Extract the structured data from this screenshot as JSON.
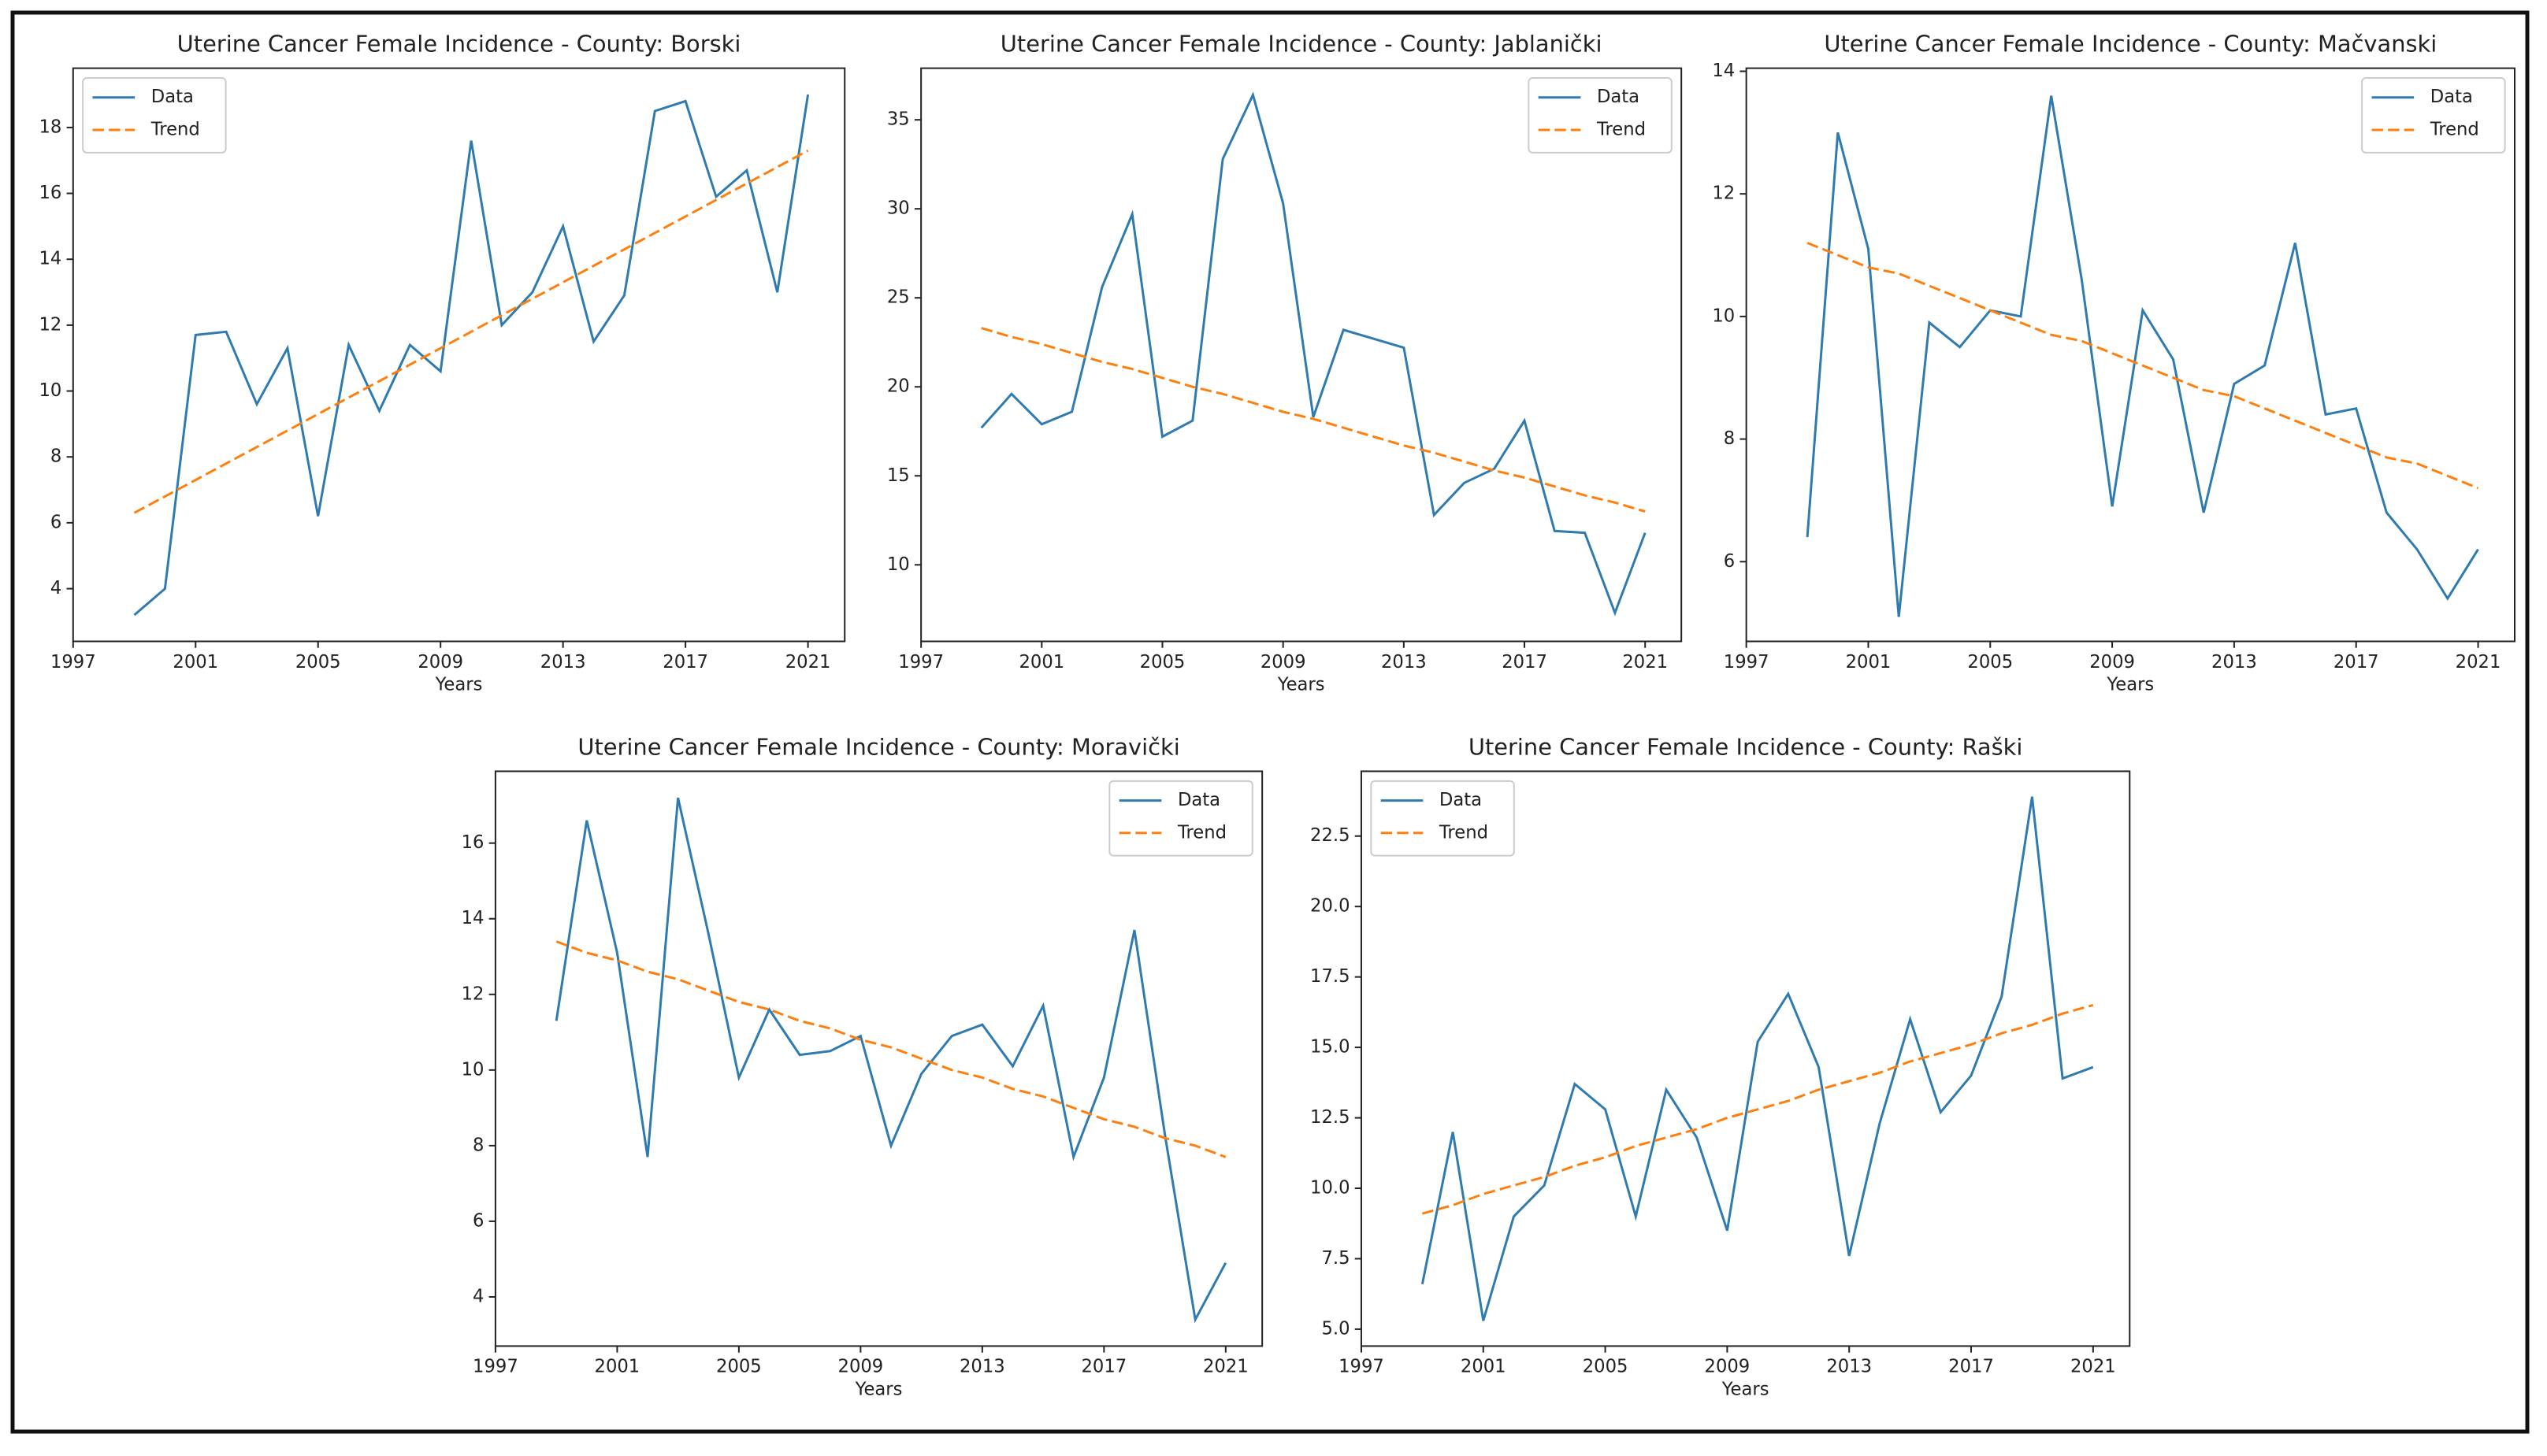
{
  "chart_data": [
    {
      "type": "line",
      "title": "Uterine Cancer Female Incidence - County: Borski",
      "xlabel": "Years",
      "legend": "upper left",
      "x": [
        1999,
        2000,
        2001,
        2002,
        2003,
        2004,
        2005,
        2006,
        2007,
        2008,
        2009,
        2010,
        2011,
        2012,
        2013,
        2014,
        2015,
        2016,
        2017,
        2018,
        2019,
        2020,
        2021
      ],
      "series": [
        {
          "name": "Data",
          "color": "#2f7bb0",
          "style": "solid",
          "values": [
            3.2,
            4.0,
            11.7,
            11.8,
            9.6,
            11.3,
            6.2,
            11.4,
            9.4,
            11.4,
            10.6,
            17.6,
            12.0,
            13.0,
            15.0,
            11.5,
            12.9,
            18.5,
            18.8,
            15.9,
            16.7,
            13.0,
            19.0
          ]
        },
        {
          "name": "Trend",
          "color": "#ff7f0e",
          "style": "dashed",
          "values": [
            6.3,
            6.8,
            7.3,
            7.8,
            8.3,
            8.8,
            9.3,
            9.8,
            10.3,
            10.8,
            11.3,
            11.8,
            12.3,
            12.8,
            13.3,
            13.8,
            14.3,
            14.8,
            15.3,
            15.8,
            16.3,
            16.8,
            17.3
          ]
        }
      ],
      "xlim": [
        1997,
        2022.2
      ],
      "xticks": [
        1997,
        2001,
        2005,
        2009,
        2013,
        2017,
        2021
      ],
      "ylim": [
        2.4,
        19.8
      ],
      "yticks": [
        4,
        6,
        8,
        10,
        12,
        14,
        16,
        18
      ]
    },
    {
      "type": "line",
      "title": "Uterine Cancer Female Incidence - County: Jablanički",
      "xlabel": "Years",
      "legend": "upper right",
      "x": [
        1999,
        2000,
        2001,
        2002,
        2003,
        2004,
        2005,
        2006,
        2007,
        2008,
        2009,
        2010,
        2011,
        2012,
        2013,
        2014,
        2015,
        2016,
        2017,
        2018,
        2019,
        2020,
        2021
      ],
      "series": [
        {
          "name": "Data",
          "color": "#2f7bb0",
          "style": "solid",
          "values": [
            17.7,
            19.6,
            17.9,
            18.6,
            25.6,
            29.7,
            17.2,
            18.1,
            32.8,
            36.4,
            30.3,
            18.3,
            23.2,
            22.7,
            22.2,
            12.8,
            14.6,
            15.4,
            18.1,
            11.9,
            11.8,
            7.3,
            11.8
          ]
        },
        {
          "name": "Trend",
          "color": "#ff7f0e",
          "style": "dashed",
          "values": [
            23.3,
            22.8,
            22.4,
            21.9,
            21.4,
            21.0,
            20.5,
            20.0,
            19.6,
            19.1,
            18.6,
            18.2,
            17.7,
            17.2,
            16.7,
            16.3,
            15.8,
            15.3,
            14.9,
            14.4,
            13.9,
            13.5,
            13.0
          ]
        }
      ],
      "xlim": [
        1997,
        2022.2
      ],
      "xticks": [
        1997,
        2001,
        2005,
        2009,
        2013,
        2017,
        2021
      ],
      "ylim": [
        5.7,
        37.9
      ],
      "yticks": [
        10,
        15,
        20,
        25,
        30,
        35
      ]
    },
    {
      "type": "line",
      "title": "Uterine Cancer Female Incidence - County: Mačvanski",
      "xlabel": "Years",
      "legend": "upper right",
      "x": [
        1999,
        2000,
        2001,
        2002,
        2003,
        2004,
        2005,
        2006,
        2007,
        2008,
        2009,
        2010,
        2011,
        2012,
        2013,
        2014,
        2015,
        2016,
        2017,
        2018,
        2019,
        2020,
        2021
      ],
      "series": [
        {
          "name": "Data",
          "color": "#2f7bb0",
          "style": "solid",
          "values": [
            6.4,
            13.0,
            11.1,
            5.1,
            9.9,
            9.5,
            10.1,
            10.0,
            13.6,
            10.6,
            6.9,
            10.1,
            9.3,
            6.8,
            8.9,
            9.2,
            11.2,
            8.4,
            8.5,
            6.8,
            6.2,
            5.4,
            6.2
          ]
        },
        {
          "name": "Trend",
          "color": "#ff7f0e",
          "style": "dashed",
          "values": [
            11.2,
            11.0,
            10.8,
            10.7,
            10.5,
            10.3,
            10.1,
            9.9,
            9.7,
            9.6,
            9.4,
            9.2,
            9.0,
            8.8,
            8.7,
            8.5,
            8.3,
            8.1,
            7.9,
            7.7,
            7.6,
            7.4,
            7.2
          ]
        }
      ],
      "xlim": [
        1997,
        2022.2
      ],
      "xticks": [
        1997,
        2001,
        2005,
        2009,
        2013,
        2017,
        2021
      ],
      "ylim": [
        4.7,
        14.05
      ],
      "yticks": [
        6,
        8,
        10,
        12,
        14
      ]
    },
    {
      "type": "line",
      "title": "Uterine Cancer Female Incidence - County: Moravički",
      "xlabel": "Years",
      "legend": "upper right",
      "x": [
        1999,
        2000,
        2001,
        2002,
        2003,
        2004,
        2005,
        2006,
        2007,
        2008,
        2009,
        2010,
        2011,
        2012,
        2013,
        2014,
        2015,
        2016,
        2017,
        2018,
        2019,
        2020,
        2021
      ],
      "series": [
        {
          "name": "Data",
          "color": "#2f7bb0",
          "style": "solid",
          "values": [
            11.3,
            16.6,
            13.1,
            7.7,
            17.2,
            13.6,
            9.8,
            11.6,
            10.4,
            10.5,
            10.9,
            8.0,
            9.9,
            10.9,
            11.2,
            10.1,
            11.7,
            7.7,
            9.8,
            13.7,
            8.3,
            3.4,
            4.9
          ]
        },
        {
          "name": "Trend",
          "color": "#ff7f0e",
          "style": "dashed",
          "values": [
            13.4,
            13.1,
            12.9,
            12.6,
            12.4,
            12.1,
            11.8,
            11.6,
            11.3,
            11.1,
            10.8,
            10.6,
            10.3,
            10.0,
            9.8,
            9.5,
            9.3,
            9.0,
            8.7,
            8.5,
            8.2,
            8.0,
            7.7
          ]
        }
      ],
      "xlim": [
        1997,
        2022.2
      ],
      "xticks": [
        1997,
        2001,
        2005,
        2009,
        2013,
        2017,
        2021
      ],
      "ylim": [
        2.7,
        17.9
      ],
      "yticks": [
        4,
        6,
        8,
        10,
        12,
        14,
        16
      ]
    },
    {
      "type": "line",
      "title": "Uterine Cancer Female Incidence - County: Raški",
      "xlabel": "Years",
      "legend": "upper left",
      "x": [
        1999,
        2000,
        2001,
        2002,
        2003,
        2004,
        2005,
        2006,
        2007,
        2008,
        2009,
        2010,
        2011,
        2012,
        2013,
        2014,
        2015,
        2016,
        2017,
        2018,
        2019,
        2020,
        2021
      ],
      "series": [
        {
          "name": "Data",
          "color": "#2f7bb0",
          "style": "solid",
          "values": [
            6.6,
            12.0,
            5.3,
            9.0,
            10.1,
            13.7,
            12.8,
            9.0,
            13.5,
            11.8,
            8.5,
            15.2,
            16.9,
            14.3,
            7.6,
            12.3,
            16.0,
            12.7,
            14.0,
            16.8,
            23.9,
            13.9,
            14.3
          ]
        },
        {
          "name": "Trend",
          "color": "#ff7f0e",
          "style": "dashed",
          "values": [
            9.1,
            9.4,
            9.8,
            10.1,
            10.4,
            10.8,
            11.1,
            11.5,
            11.8,
            12.1,
            12.5,
            12.8,
            13.1,
            13.5,
            13.8,
            14.1,
            14.5,
            14.8,
            15.1,
            15.5,
            15.8,
            16.2,
            16.5
          ]
        }
      ],
      "xlim": [
        1997,
        2022.2
      ],
      "xticks": [
        1997,
        2001,
        2005,
        2009,
        2013,
        2017,
        2021
      ],
      "ylim": [
        4.4,
        24.8
      ],
      "yticks": [
        {
          "value": 5,
          "label": "5.0"
        },
        {
          "value": 7.5,
          "label": "7.5"
        },
        {
          "value": 10,
          "label": "10.0"
        },
        {
          "value": 12.5,
          "label": "12.5"
        },
        {
          "value": 15,
          "label": "15.0"
        },
        {
          "value": 17.5,
          "label": "17.5"
        },
        {
          "value": 20,
          "label": "20.0"
        },
        {
          "value": 22.5,
          "label": "22.5"
        }
      ]
    }
  ]
}
